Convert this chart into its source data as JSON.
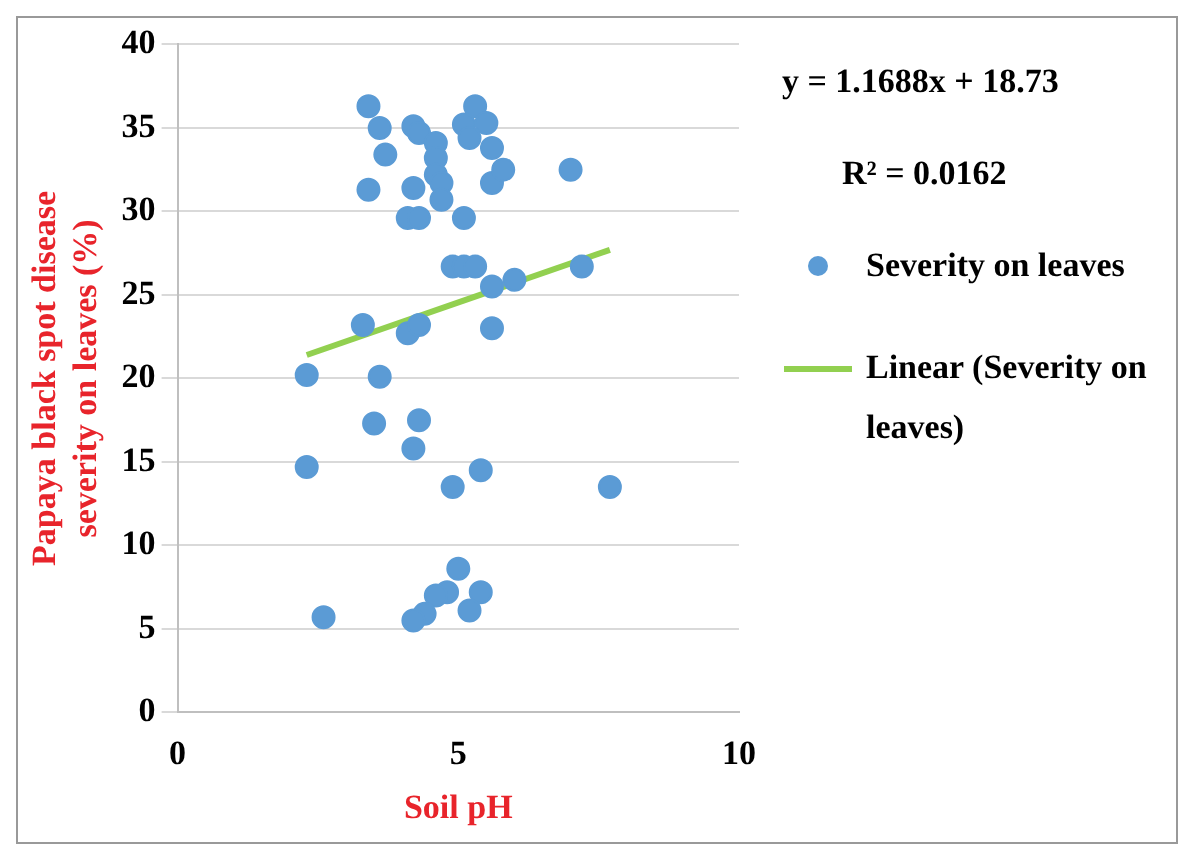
{
  "chart_data": {
    "type": "scatter",
    "xlabel": "Soil pH",
    "ylabel": "Papaya black spot disease severity on leaves (%)",
    "xlim": [
      0,
      10
    ],
    "xticks": [
      0,
      5,
      10
    ],
    "ylim": [
      0,
      40
    ],
    "yticks": [
      0,
      5,
      10,
      15,
      20,
      25,
      30,
      35,
      40
    ],
    "grid": "y",
    "legend": "right",
    "annotations": [
      "y = 1.1688x + 18.73",
      "R² = 0.0162"
    ],
    "series": [
      {
        "name": "Severity on leaves",
        "marker": "circle",
        "color": "#5b9bd5",
        "x": [
          3.4,
          3.6,
          3.7,
          3.4,
          4.1,
          4.3,
          5.1,
          4.2,
          4.2,
          4.3,
          4.6,
          4.6,
          4.6,
          4.7,
          4.7,
          5.1,
          5.3,
          5.5,
          5.2,
          5.6,
          5.6,
          5.8,
          7.0,
          4.9,
          5.1,
          5.3,
          7.2,
          5.6,
          6.0,
          3.3,
          4.1,
          4.3,
          5.6,
          2.3,
          3.6,
          2.3,
          3.5,
          4.3,
          4.2,
          4.9,
          5.4,
          7.7,
          5.0,
          4.8,
          4.6,
          5.4,
          5.2,
          4.4,
          4.2,
          2.6
        ],
        "values": [
          36.3,
          35.0,
          33.4,
          31.3,
          29.6,
          29.6,
          29.6,
          31.4,
          35.1,
          34.7,
          34.1,
          33.2,
          32.2,
          31.7,
          30.7,
          35.2,
          36.3,
          35.3,
          34.4,
          33.8,
          31.7,
          32.5,
          32.5,
          26.7,
          26.7,
          26.7,
          26.7,
          25.5,
          25.9,
          23.2,
          22.7,
          23.2,
          23.0,
          20.2,
          20.1,
          14.7,
          17.3,
          17.5,
          15.8,
          13.5,
          14.5,
          13.5,
          8.6,
          7.2,
          7.0,
          7.2,
          6.1,
          5.9,
          5.5,
          5.7
        ]
      },
      {
        "name": "Linear (Severity on leaves)",
        "type": "line",
        "color": "#92d050",
        "x": [
          2.3,
          7.7
        ],
        "values": [
          21.4,
          27.7
        ]
      }
    ]
  }
}
